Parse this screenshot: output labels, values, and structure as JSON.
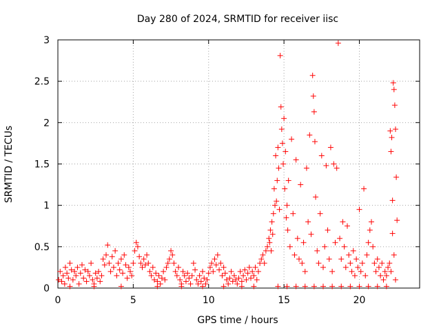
{
  "chart_data": {
    "type": "scatter",
    "title": "Day 280 of 2024, SRMTID for receiver iisc",
    "xlabel": "GPS time / hours",
    "ylabel": "SRMTID / TECUs",
    "xlim": [
      0,
      24
    ],
    "ylim": [
      0,
      3
    ],
    "xticks": [
      0,
      5,
      10,
      15,
      20
    ],
    "yticks": [
      0,
      0.5,
      1,
      1.5,
      2,
      2.5,
      3
    ],
    "xtick_labels": [
      "0",
      "5",
      "10",
      "15",
      "20"
    ],
    "ytick_labels": [
      "0",
      "0.5",
      "1",
      "1.5",
      "2",
      "2.5",
      "3"
    ],
    "grid": true,
    "marker": "+",
    "series_color": "#ff0000",
    "series": [
      {
        "name": "SRMTID",
        "points": [
          [
            0.05,
            0.1
          ],
          [
            0.15,
            0.2
          ],
          [
            0.25,
            0.08
          ],
          [
            0.35,
            0.15
          ],
          [
            0.45,
            0.05
          ],
          [
            0.5,
            0.25
          ],
          [
            0.6,
            0.18
          ],
          [
            0.7,
            0.12
          ],
          [
            0.8,
            0.3
          ],
          [
            0.9,
            0.22
          ],
          [
            1.0,
            0.1
          ],
          [
            1.1,
            0.2
          ],
          [
            1.2,
            0.15
          ],
          [
            1.3,
            0.25
          ],
          [
            1.4,
            0.05
          ],
          [
            1.5,
            0.18
          ],
          [
            1.6,
            0.28
          ],
          [
            1.7,
            0.12
          ],
          [
            1.8,
            0.22
          ],
          [
            1.9,
            0.08
          ],
          [
            2.0,
            0.2
          ],
          [
            2.1,
            0.15
          ],
          [
            2.2,
            0.3
          ],
          [
            2.3,
            0.1
          ],
          [
            2.4,
            0.05
          ],
          [
            2.5,
            0.18
          ],
          [
            2.6,
            0.12
          ],
          [
            2.7,
            0.2
          ],
          [
            2.8,
            0.08
          ],
          [
            2.9,
            0.15
          ],
          [
            3.0,
            0.35
          ],
          [
            3.1,
            0.28
          ],
          [
            3.2,
            0.4
          ],
          [
            3.3,
            0.52
          ],
          [
            3.4,
            0.3
          ],
          [
            3.5,
            0.2
          ],
          [
            3.6,
            0.38
          ],
          [
            3.7,
            0.25
          ],
          [
            3.8,
            0.45
          ],
          [
            3.9,
            0.15
          ],
          [
            4.0,
            0.3
          ],
          [
            4.1,
            0.22
          ],
          [
            4.2,
            0.35
          ],
          [
            4.3,
            0.18
          ],
          [
            4.4,
            0.4
          ],
          [
            4.5,
            0.28
          ],
          [
            4.6,
            0.12
          ],
          [
            4.7,
            0.25
          ],
          [
            4.8,
            0.2
          ],
          [
            4.9,
            0.15
          ],
          [
            5.0,
            0.3
          ],
          [
            5.1,
            0.45
          ],
          [
            5.2,
            0.55
          ],
          [
            5.3,
            0.5
          ],
          [
            5.4,
            0.38
          ],
          [
            5.5,
            0.3
          ],
          [
            5.6,
            0.25
          ],
          [
            5.7,
            0.35
          ],
          [
            5.8,
            0.28
          ],
          [
            5.9,
            0.4
          ],
          [
            6.0,
            0.3
          ],
          [
            6.1,
            0.2
          ],
          [
            6.2,
            0.15
          ],
          [
            6.3,
            0.25
          ],
          [
            6.4,
            0.1
          ],
          [
            6.5,
            0.18
          ],
          [
            6.6,
            0.08
          ],
          [
            6.7,
            0.15
          ],
          [
            6.8,
            0.05
          ],
          [
            6.9,
            0.12
          ],
          [
            7.0,
            0.2
          ],
          [
            7.1,
            0.1
          ],
          [
            7.2,
            0.25
          ],
          [
            7.3,
            0.3
          ],
          [
            7.4,
            0.35
          ],
          [
            7.5,
            0.45
          ],
          [
            7.6,
            0.4
          ],
          [
            7.7,
            0.3
          ],
          [
            7.8,
            0.2
          ],
          [
            7.9,
            0.15
          ],
          [
            8.0,
            0.25
          ],
          [
            8.1,
            0.1
          ],
          [
            8.2,
            0.05
          ],
          [
            8.3,
            0.2
          ],
          [
            8.4,
            0.15
          ],
          [
            8.5,
            0.08
          ],
          [
            8.6,
            0.18
          ],
          [
            8.7,
            0.12
          ],
          [
            8.8,
            0.05
          ],
          [
            8.9,
            0.15
          ],
          [
            9.0,
            0.3
          ],
          [
            9.1,
            0.22
          ],
          [
            9.2,
            0.1
          ],
          [
            9.3,
            0.05
          ],
          [
            9.4,
            0.15
          ],
          [
            9.5,
            0.08
          ],
          [
            9.6,
            0.2
          ],
          [
            9.7,
            0.12
          ],
          [
            9.8,
            0.05
          ],
          [
            9.9,
            0.1
          ],
          [
            10.0,
            0.18
          ],
          [
            10.1,
            0.25
          ],
          [
            10.2,
            0.3
          ],
          [
            10.3,
            0.2
          ],
          [
            10.4,
            0.35
          ],
          [
            10.5,
            0.28
          ],
          [
            10.6,
            0.4
          ],
          [
            10.7,
            0.22
          ],
          [
            10.8,
            0.3
          ],
          [
            10.9,
            0.15
          ],
          [
            11.0,
            0.25
          ],
          [
            11.1,
            0.18
          ],
          [
            11.2,
            0.1
          ],
          [
            11.3,
            0.05
          ],
          [
            11.4,
            0.12
          ],
          [
            11.5,
            0.2
          ],
          [
            11.6,
            0.08
          ],
          [
            11.7,
            0.15
          ],
          [
            11.8,
            0.1
          ],
          [
            11.9,
            0.05
          ],
          [
            12.0,
            0.12
          ],
          [
            12.1,
            0.2
          ],
          [
            12.2,
            0.08
          ],
          [
            12.3,
            0.15
          ],
          [
            12.4,
            0.22
          ],
          [
            12.5,
            0.1
          ],
          [
            12.6,
            0.18
          ],
          [
            12.7,
            0.25
          ],
          [
            12.8,
            0.12
          ],
          [
            12.9,
            0.2
          ],
          [
            13.0,
            0.15
          ],
          [
            13.1,
            0.25
          ],
          [
            13.2,
            0.1
          ],
          [
            13.3,
            0.2
          ],
          [
            13.4,
            0.3
          ],
          [
            13.5,
            0.35
          ],
          [
            13.6,
            0.4
          ],
          [
            13.7,
            0.3
          ],
          [
            13.8,
            0.45
          ],
          [
            13.9,
            0.5
          ],
          [
            14.0,
            0.6
          ],
          [
            14.05,
            0.55
          ],
          [
            14.1,
            0.7
          ],
          [
            14.15,
            0.45
          ],
          [
            14.2,
            0.8
          ],
          [
            14.25,
            0.65
          ],
          [
            14.3,
            0.9
          ],
          [
            14.35,
            1.2
          ],
          [
            14.4,
            1.0
          ],
          [
            14.45,
            1.6
          ],
          [
            14.5,
            1.05
          ],
          [
            14.55,
            1.3
          ],
          [
            14.6,
            1.7
          ],
          [
            14.65,
            1.45
          ],
          [
            14.7,
            0.95
          ],
          [
            14.75,
            2.81
          ],
          [
            14.8,
            2.19
          ],
          [
            14.85,
            1.92
          ],
          [
            14.9,
            1.75
          ],
          [
            14.95,
            1.5
          ],
          [
            15.0,
            2.05
          ],
          [
            15.05,
            1.2
          ],
          [
            15.1,
            1.65
          ],
          [
            15.15,
            0.85
          ],
          [
            15.2,
            1.0
          ],
          [
            15.25,
            0.7
          ],
          [
            15.3,
            1.3
          ],
          [
            15.4,
            0.5
          ],
          [
            15.5,
            1.8
          ],
          [
            15.6,
            0.9
          ],
          [
            15.7,
            0.4
          ],
          [
            15.8,
            1.55
          ],
          [
            15.9,
            0.6
          ],
          [
            16.0,
            0.35
          ],
          [
            16.1,
            1.25
          ],
          [
            16.2,
            0.3
          ],
          [
            16.3,
            0.55
          ],
          [
            16.4,
            0.2
          ],
          [
            16.5,
            1.45
          ],
          [
            16.6,
            0.8
          ],
          [
            16.7,
            1.85
          ],
          [
            16.8,
            0.65
          ],
          [
            16.9,
            2.57
          ],
          [
            16.95,
            2.32
          ],
          [
            17.0,
            2.13
          ],
          [
            17.05,
            1.77
          ],
          [
            17.1,
            1.1
          ],
          [
            17.2,
            0.45
          ],
          [
            17.3,
            0.3
          ],
          [
            17.4,
            0.9
          ],
          [
            17.5,
            1.6
          ],
          [
            17.6,
            0.25
          ],
          [
            17.7,
            0.5
          ],
          [
            17.8,
            1.48
          ],
          [
            17.9,
            0.7
          ],
          [
            18.0,
            0.35
          ],
          [
            18.1,
            1.7
          ],
          [
            18.2,
            0.2
          ],
          [
            18.3,
            1.5
          ],
          [
            18.4,
            0.55
          ],
          [
            18.5,
            1.45
          ],
          [
            18.6,
            2.96
          ],
          [
            18.7,
            0.6
          ],
          [
            18.8,
            0.35
          ],
          [
            18.9,
            0.8
          ],
          [
            19.0,
            0.5
          ],
          [
            19.1,
            0.25
          ],
          [
            19.2,
            0.75
          ],
          [
            19.3,
            0.4
          ],
          [
            19.4,
            0.3
          ],
          [
            19.5,
            0.2
          ],
          [
            19.6,
            0.45
          ],
          [
            19.7,
            0.15
          ],
          [
            19.8,
            0.35
          ],
          [
            19.9,
            0.25
          ],
          [
            20.0,
            0.95
          ],
          [
            20.1,
            0.2
          ],
          [
            20.2,
            0.3
          ],
          [
            20.3,
            1.2
          ],
          [
            20.4,
            0.15
          ],
          [
            20.5,
            0.4
          ],
          [
            20.6,
            0.55
          ],
          [
            20.7,
            0.7
          ],
          [
            20.8,
            0.8
          ],
          [
            20.9,
            0.5
          ],
          [
            21.0,
            0.3
          ],
          [
            21.1,
            0.2
          ],
          [
            21.2,
            0.35
          ],
          [
            21.3,
            0.25
          ],
          [
            21.4,
            0.15
          ],
          [
            21.5,
            0.3
          ],
          [
            21.6,
            0.1
          ],
          [
            21.7,
            0.2
          ],
          [
            21.8,
            0.15
          ],
          [
            21.9,
            0.25
          ],
          [
            22.0,
            0.3
          ],
          [
            22.05,
            1.9
          ],
          [
            22.1,
            1.65
          ],
          [
            22.15,
            1.82
          ],
          [
            22.2,
            1.06
          ],
          [
            22.25,
            2.48
          ],
          [
            22.3,
            2.4
          ],
          [
            22.35,
            2.21
          ],
          [
            22.4,
            1.92
          ],
          [
            22.45,
            1.34
          ],
          [
            22.5,
            0.82
          ],
          [
            22.2,
            0.66
          ],
          [
            22.3,
            0.4
          ],
          [
            22.1,
            0.2
          ],
          [
            22.4,
            0.1
          ],
          [
            14.6,
            0.02
          ],
          [
            15.2,
            0.02
          ],
          [
            15.8,
            0.02
          ],
          [
            16.4,
            0.02
          ],
          [
            17.0,
            0.02
          ],
          [
            17.6,
            0.02
          ],
          [
            18.2,
            0.02
          ],
          [
            18.8,
            0.02
          ],
          [
            19.4,
            0.02
          ],
          [
            20.0,
            0.02
          ],
          [
            20.6,
            0.02
          ],
          [
            21.2,
            0.02
          ],
          [
            21.8,
            0.02
          ],
          [
            13.0,
            0.02
          ],
          [
            12.2,
            0.02
          ],
          [
            11.0,
            0.02
          ],
          [
            9.6,
            0.02
          ],
          [
            8.2,
            0.02
          ],
          [
            6.6,
            0.02
          ],
          [
            4.2,
            0.02
          ],
          [
            2.4,
            0.02
          ],
          [
            0.8,
            0.02
          ]
        ]
      }
    ]
  }
}
